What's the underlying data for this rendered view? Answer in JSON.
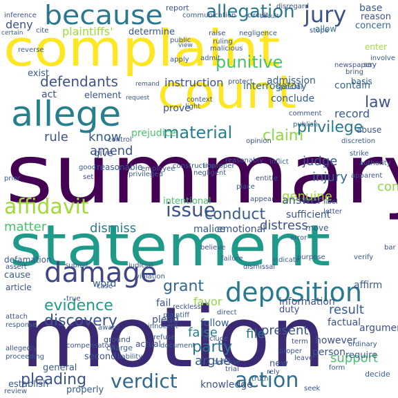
{
  "colors": {
    "background": "#ffffff",
    "palette": [
      "#440154",
      "#46327e",
      "#365c8d",
      "#277f8e",
      "#1fa187",
      "#4ac16d",
      "#a0da39",
      "#fde725"
    ]
  },
  "words": [
    "summary",
    "motion",
    "statement",
    "complaint",
    "count",
    "allege",
    "because",
    "damage",
    "deposition",
    "allegation",
    "jury",
    "verdict",
    "action",
    "affidavit",
    "issue",
    "punitive",
    "material",
    "defendants",
    "conduct",
    "claim",
    "privilege",
    "discovery",
    "evidence",
    "pleading",
    "party",
    "law",
    "grant",
    "plaintiffs'",
    "deny",
    "judge",
    "injury",
    "present",
    "file",
    "support",
    "dismiss",
    "rule",
    "matter",
    "know",
    "amend",
    "instruction",
    "genuine",
    "answer",
    "false",
    "interrogatory",
    "argue",
    "favor",
    "distress",
    "result",
    "consider",
    "contain",
    "record",
    "conclude",
    "emotional",
    "fail",
    "information",
    "base",
    "reason",
    "concern",
    "say",
    "enter",
    "malice",
    "sufficient",
    "knowledge",
    "prejudice",
    "prove",
    "factual",
    "admission",
    "act",
    "element",
    "exist",
    "intentional",
    "general",
    "second",
    "establish",
    "properly",
    "defamation",
    "however",
    "person",
    "require",
    "duty",
    "argument",
    "affirm",
    "plead",
    "word",
    "follow",
    "new",
    "cause",
    "article",
    "give",
    "report",
    "inference",
    "communication",
    "circuit",
    "disregard",
    "certain",
    "cite",
    "determine",
    "stope",
    "allow",
    "reverse",
    "public",
    "ruling",
    "raise",
    "negligence",
    "malicious",
    "view",
    "apply",
    "admit",
    "protect",
    "special",
    "remand",
    "request",
    "context",
    "light",
    "comment",
    "publish",
    "newspaper",
    "involve",
    "bring",
    "basis",
    "abuse",
    "discretion",
    "control",
    "strike",
    "reasonably",
    "reasonable",
    "construction",
    "good",
    "set",
    "prior",
    "employee",
    "privileged",
    "negligent",
    "improper",
    "letter",
    "libel",
    "appear",
    "place",
    "assert",
    "submit",
    "judicial",
    "violation",
    "dismissal",
    "indicate",
    "purpose",
    "error",
    "bar",
    "move",
    "believe",
    "failure",
    "attach",
    "response",
    "true",
    "innocent",
    "reckless",
    "plaintiff",
    "award",
    "refuse",
    "ground",
    "charge",
    "actual",
    "document",
    "include",
    "defense",
    "trial",
    "truth",
    "rely",
    "decide",
    "seek",
    "review",
    "leave",
    "form",
    "proper",
    "ordinary",
    "term",
    "direct",
    "allegedly",
    "proceeding",
    "compensatory",
    "liability",
    "case",
    "verify",
    "entitle",
    "inflict",
    "opinion",
    "authority",
    "apparent",
    "circuit"
  ]
}
